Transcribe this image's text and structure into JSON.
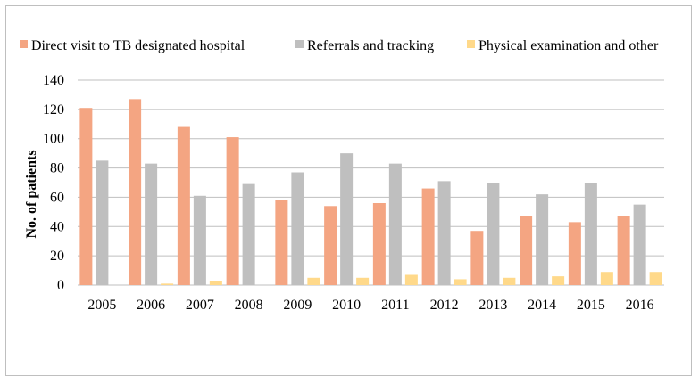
{
  "chart_data": {
    "type": "bar",
    "title": "",
    "xlabel": "",
    "ylabel": "No. of patients",
    "ylim": [
      0,
      140
    ],
    "yticks": [
      0,
      20,
      40,
      60,
      80,
      100,
      120,
      140
    ],
    "grid": true,
    "legend_position": "top",
    "categories": [
      "2005",
      "2006",
      "2007",
      "2008",
      "2009",
      "2010",
      "2011",
      "2012",
      "2013",
      "2014",
      "2015",
      "2016"
    ],
    "series": [
      {
        "name": "Direct visit to TB designated hospital",
        "color": "#f4a582",
        "values": [
          121,
          127,
          108,
          101,
          58,
          54,
          56,
          66,
          37,
          47,
          43,
          47
        ]
      },
      {
        "name": "Referrals and tracking",
        "color": "#bfbfbf",
        "values": [
          85,
          83,
          61,
          69,
          77,
          90,
          83,
          71,
          70,
          62,
          70,
          55
        ]
      },
      {
        "name": "Physical examination and other",
        "color": "#ffd98a",
        "values": [
          0,
          1,
          3,
          0,
          5,
          5,
          7,
          4,
          5,
          6,
          9,
          9
        ]
      }
    ]
  }
}
